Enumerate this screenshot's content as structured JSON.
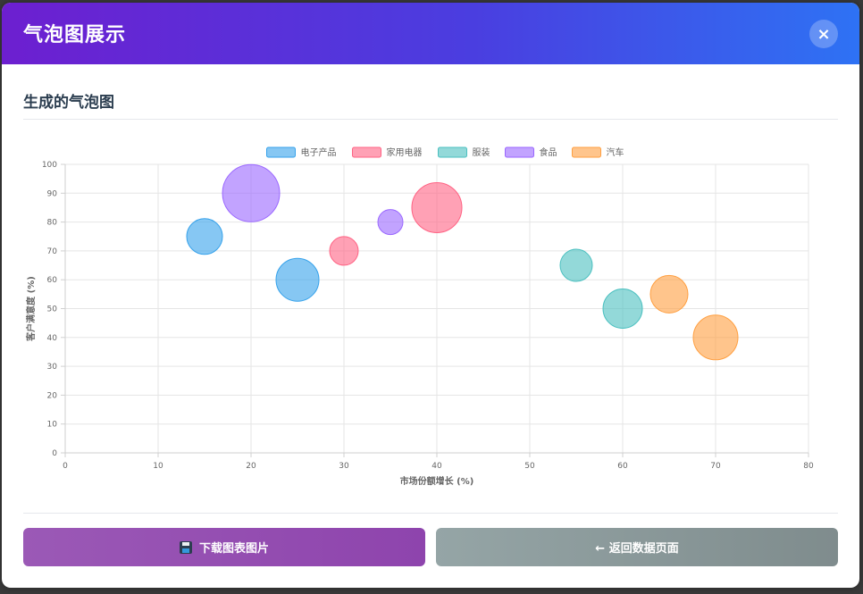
{
  "modal": {
    "title": "气泡图展示",
    "close_label": "×"
  },
  "section": {
    "title": "生成的气泡图"
  },
  "buttons": {
    "download_label": "下载图表图片",
    "back_label": "← 返回数据页面"
  },
  "chart_data": {
    "type": "bubble",
    "xlabel": "市场份额增长 (%)",
    "ylabel": "客户满意度 (%)",
    "xlim": [
      0,
      80
    ],
    "ylim": [
      0,
      100
    ],
    "xticks": [
      0,
      10,
      20,
      30,
      40,
      50,
      60,
      70,
      80
    ],
    "yticks": [
      0,
      10,
      20,
      30,
      40,
      50,
      60,
      70,
      80,
      90,
      100
    ],
    "grid": true,
    "legend_position": "top",
    "series": [
      {
        "name": "电子产品",
        "color": "#36a2eb",
        "points": [
          {
            "x": 15,
            "y": 75,
            "r": 20
          },
          {
            "x": 25,
            "y": 60,
            "r": 24
          }
        ]
      },
      {
        "name": "家用电器",
        "color": "#ff6384",
        "points": [
          {
            "x": 30,
            "y": 70,
            "r": 16
          },
          {
            "x": 40,
            "y": 85,
            "r": 28
          }
        ]
      },
      {
        "name": "服装",
        "color": "#4bc0c0",
        "points": [
          {
            "x": 55,
            "y": 65,
            "r": 18
          },
          {
            "x": 60,
            "y": 50,
            "r": 22
          }
        ]
      },
      {
        "name": "食品",
        "color": "#9966ff",
        "points": [
          {
            "x": 20,
            "y": 90,
            "r": 32
          },
          {
            "x": 35,
            "y": 80,
            "r": 14
          }
        ]
      },
      {
        "name": "汽车",
        "color": "#ff9f40",
        "points": [
          {
            "x": 65,
            "y": 55,
            "r": 21
          },
          {
            "x": 70,
            "y": 40,
            "r": 25
          }
        ]
      }
    ]
  }
}
